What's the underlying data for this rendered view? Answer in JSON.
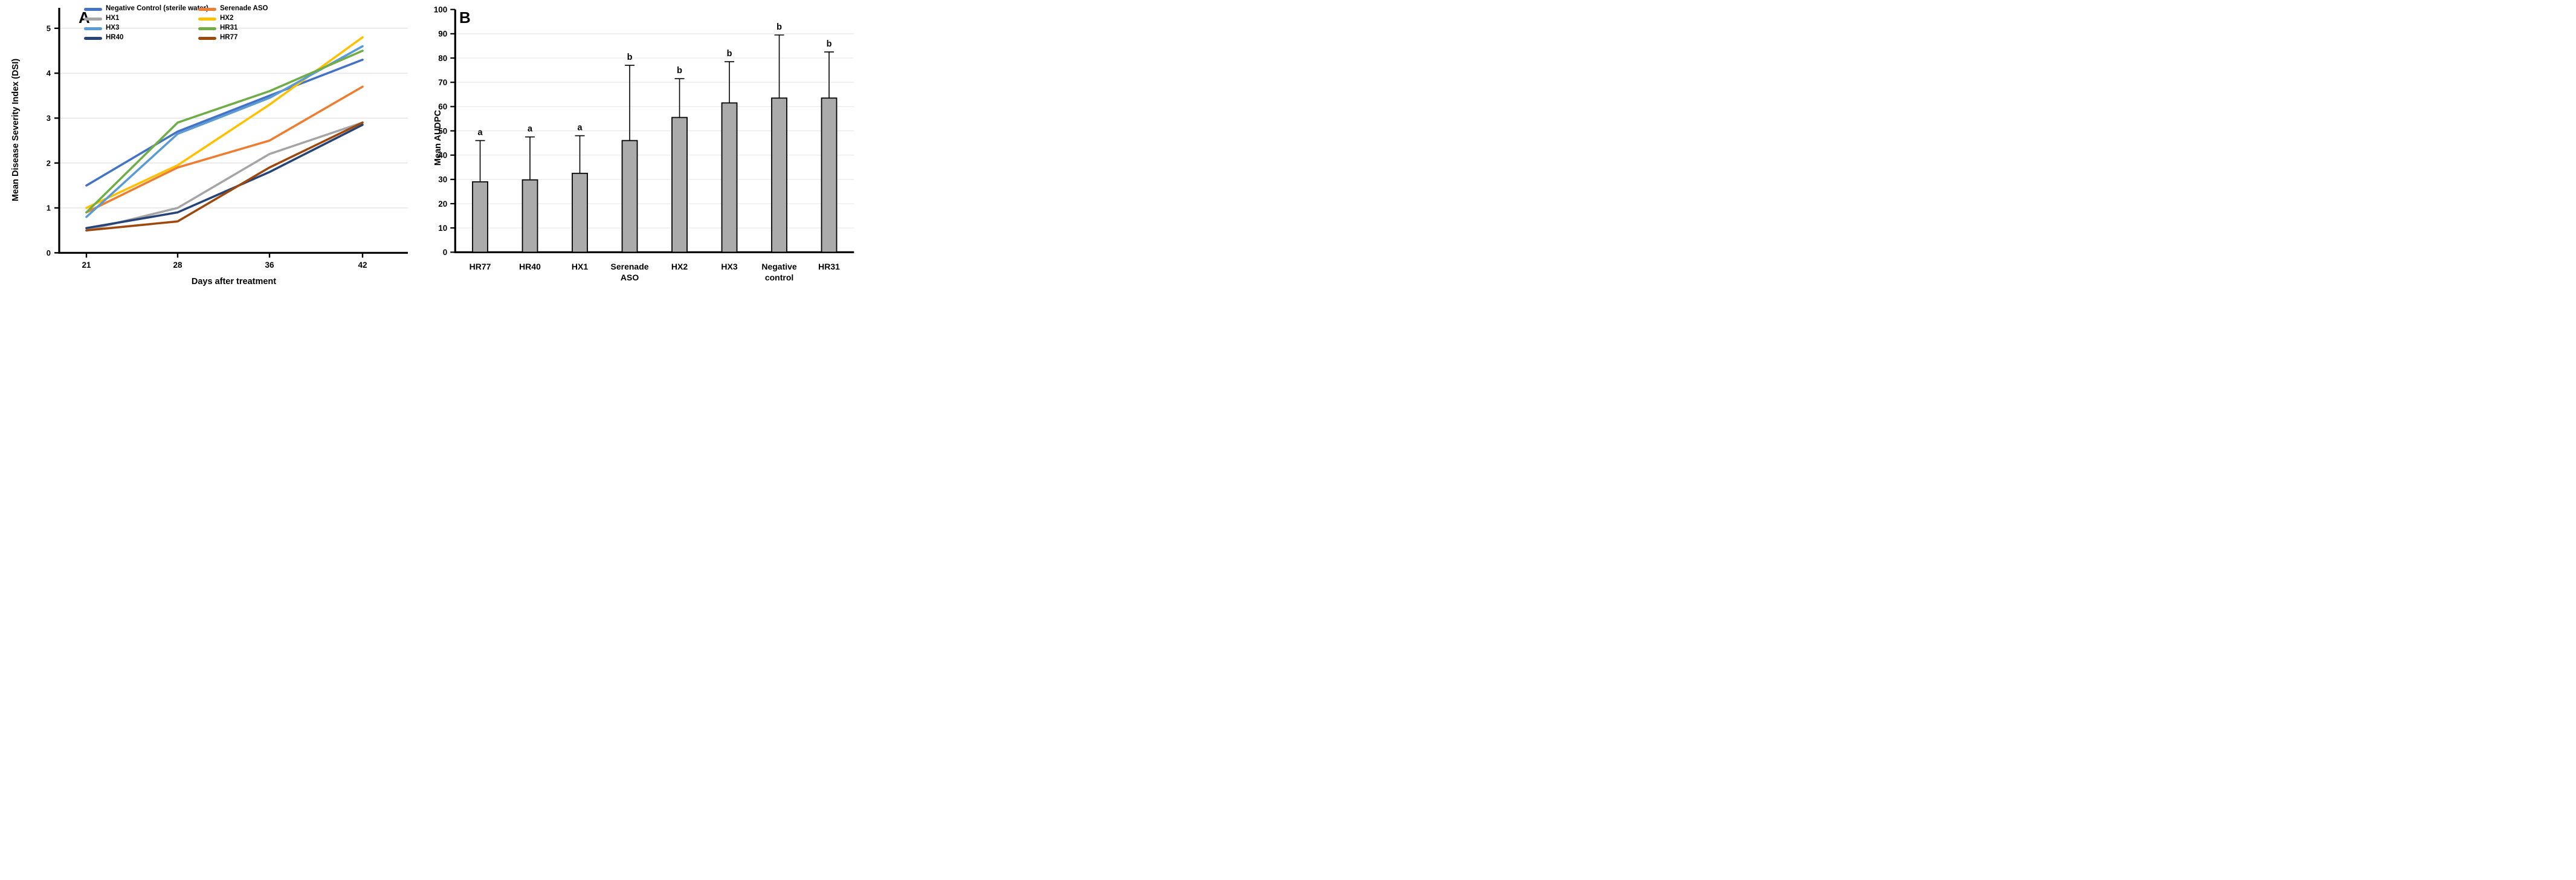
{
  "panel_a": {
    "panel_label": "A",
    "y_axis_title": "Mean Disease Severity Index (DSI)",
    "x_axis_title": "Days after treatment"
  },
  "panel_b": {
    "panel_label": "B",
    "y_axis_title": "Mean AUDPC"
  },
  "chart_data": [
    {
      "type": "line",
      "panel": "A",
      "xlabel": "Days after treatment",
      "ylabel": "Mean Disease Severity Index (DSI)",
      "x_categories": [
        "21",
        "28",
        "36",
        "42"
      ],
      "ylim": [
        0,
        5
      ],
      "yticks": [
        0,
        1,
        2,
        3,
        4,
        5
      ],
      "grid": "horizontal",
      "legend_position": "top-inside, two columns",
      "series": [
        {
          "name": "Negative Control (sterile water)",
          "color": "#4472C4",
          "values": [
            1.5,
            2.7,
            3.5,
            4.3
          ]
        },
        {
          "name": "Serenade ASO",
          "color": "#ED7D31",
          "values": [
            0.9,
            1.9,
            2.5,
            3.7
          ]
        },
        {
          "name": "HX1",
          "color": "#A5A5A5",
          "values": [
            0.5,
            1.0,
            2.2,
            2.9
          ]
        },
        {
          "name": "HX2",
          "color": "#FFC000",
          "values": [
            1.0,
            1.95,
            3.3,
            4.8
          ]
        },
        {
          "name": "HX3",
          "color": "#5B9BD5",
          "values": [
            0.8,
            2.65,
            3.45,
            4.6
          ]
        },
        {
          "name": "HR31",
          "color": "#70AD47",
          "values": [
            0.9,
            2.9,
            3.6,
            4.5
          ]
        },
        {
          "name": "HR40",
          "color": "#264478",
          "values": [
            0.55,
            0.9,
            1.8,
            2.85
          ]
        },
        {
          "name": "HR77",
          "color": "#9E480E",
          "values": [
            0.5,
            0.7,
            1.9,
            2.9
          ]
        }
      ]
    },
    {
      "type": "bar",
      "panel": "B",
      "ylabel": "Mean AUDPC",
      "categories": [
        "HR77",
        "HR40",
        "HX1",
        "Serenade ASO",
        "HX2",
        "HX3",
        "Negative control",
        "HR31"
      ],
      "category_label_lines": [
        [
          "HR77"
        ],
        [
          "HR40"
        ],
        [
          "HX1"
        ],
        [
          "Serenade",
          "ASO"
        ],
        [
          "HX2"
        ],
        [
          "HX3"
        ],
        [
          "Negative",
          "control"
        ],
        [
          "HR31"
        ]
      ],
      "values": [
        29,
        29.8,
        32.5,
        46,
        55.5,
        61.5,
        63.5,
        63.5
      ],
      "error_top": [
        46,
        47.5,
        48,
        77,
        71.5,
        78.5,
        89.5,
        82.5
      ],
      "sig_letters": [
        "a",
        "a",
        "a",
        "b",
        "b",
        "b",
        "b",
        "b"
      ],
      "ylim": [
        0,
        100
      ],
      "ytick_step": 10,
      "grid": "horizontal",
      "bar_color": "#ABABAB",
      "bar_border": "#000000",
      "gridline_color": "#E4E4E4",
      "axis_color": "#000000"
    }
  ]
}
